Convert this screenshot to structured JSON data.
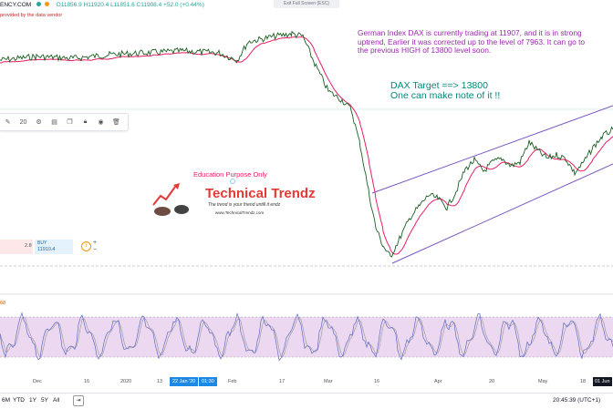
{
  "legend": {
    "symbol": "ENCY.COM",
    "open": "O11856.9",
    "high": "H11920.4",
    "low": "L11851.6",
    "close": "C11908.4",
    "change": "+52.0 (+0.44%)"
  },
  "fullscreen_hint": "Exit Full Screen (ESC)",
  "vendor_note": "provided by the data vendor",
  "toolbar": {
    "line_width": "20",
    "icons": [
      "pencil-icon",
      "settings-icon",
      "template-icon",
      "copy-icon",
      "lock-icon",
      "eye-icon",
      "trash-icon"
    ]
  },
  "order_panel": {
    "spread": "2.8",
    "buy_label": "BUY",
    "buy_price": "11910.4"
  },
  "annotation_main": "German Index DAX is currently trading at 11907, and it is in strong uptrend, Earlier it was corrected up to the level of 7963. It can go to the previous HIGH of 13800 level soon.",
  "annotation_target_line1": "DAX Target ==> 13800",
  "annotation_target_line2": "One can make note of it !!",
  "education_label": "Education Purpose Only",
  "logo": {
    "brand": "Technical Trendz",
    "tagline": "The trend is your friend untill it endz",
    "url": "www.TechnicalTrendz.com"
  },
  "oscillator_label": "68",
  "time_axis": {
    "labels": [
      "Dec",
      "16",
      "2020",
      "13",
      "22 Jan '20",
      "01:30",
      "Feb",
      "17",
      "Mar",
      "16",
      "Apr",
      "20",
      "May",
      "18",
      "01 Jun"
    ],
    "highlight_date": "22 Jan '20",
    "highlight_time": "01:30"
  },
  "bottom_bar": {
    "ranges": [
      "6M",
      "YTD",
      "1Y",
      "5Y",
      "All"
    ],
    "clock": "20:45:39 (UTC+1)"
  },
  "colors": {
    "price_line": "#1b5e20",
    "moving_average": "#e91e63",
    "channel": "#7e57c2",
    "oscillator_band": "#e1bee7",
    "stoch_k": "#5c6bc0",
    "stoch_d": "#9e9e9e",
    "annotation_main": "#9c27b0",
    "annotation_target": "#00897b",
    "brand_red": "#e53935"
  }
}
